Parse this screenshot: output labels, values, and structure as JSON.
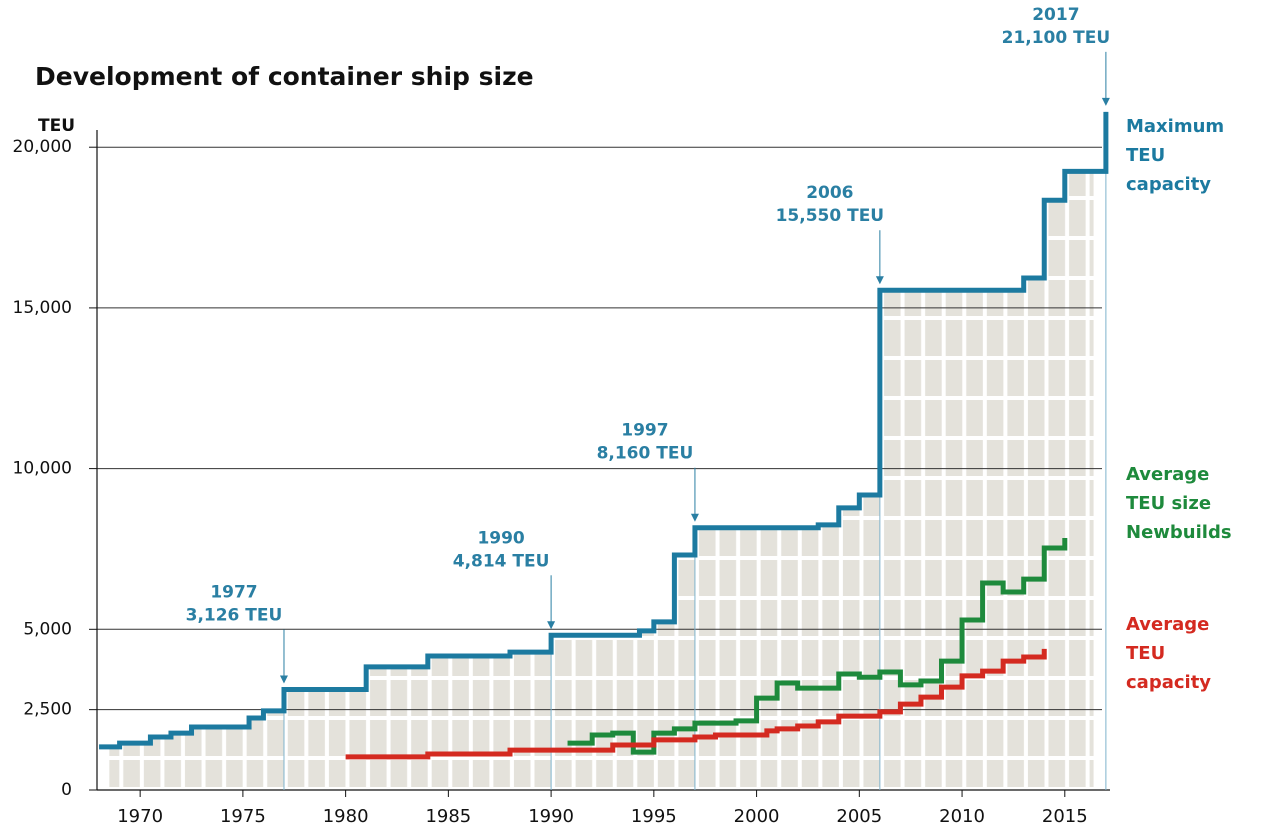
{
  "chart_data": {
    "type": "step",
    "title": "Development of container ship size",
    "y_label": "TEU",
    "xlim": [
      1967.9,
      2017.2
    ],
    "xticks": [
      1970,
      1975,
      1980,
      1985,
      1990,
      1995,
      2000,
      2005,
      2010,
      2015
    ],
    "ylim": [
      0,
      21500
    ],
    "yticks": [
      0,
      {
        "value": 2500,
        "label": "2,500"
      },
      {
        "value": 5000,
        "label": "5,000"
      },
      {
        "value": 10000,
        "label": "10,000"
      },
      {
        "value": 15000,
        "label": "15,000"
      },
      {
        "value": 20000,
        "label": "20,000"
      }
    ],
    "grid": true,
    "series": [
      {
        "name": "Maximum TEU capacity",
        "color": "#1c7aa0",
        "x": [
          1968,
          1969,
          1970.5,
          1971.5,
          1972.5,
          1975.3,
          1976,
          1977,
          1981,
          1984,
          1988,
          1990,
          1994.3,
          1995,
          1996,
          1997,
          2003,
          2004,
          2005,
          2006,
          2013,
          2014,
          2015,
          2017
        ],
        "values": [
          1340,
          1460,
          1650,
          1770,
          1960,
          2240,
          2460,
          3126,
          3830,
          4170,
          4290,
          4814,
          4950,
          5230,
          7310,
          8160,
          8250,
          8780,
          9180,
          15550,
          15930,
          18350,
          19250,
          21100
        ]
      },
      {
        "name": "Average TEU size Newbuilds",
        "color": "#1e8a3c",
        "x": [
          1990.8,
          1992,
          1993,
          1994,
          1995,
          1996,
          1997,
          1999,
          2000,
          2001,
          2002,
          2004,
          2005,
          2006,
          2007,
          2008,
          2009,
          2010,
          2011,
          2012,
          2013,
          2014,
          2015
        ],
        "values": [
          1460,
          1710,
          1770,
          1180,
          1770,
          1900,
          2080,
          2150,
          2860,
          3330,
          3170,
          3610,
          3510,
          3670,
          3270,
          3390,
          4010,
          5290,
          6440,
          6160,
          6560,
          7530,
          7840
        ]
      },
      {
        "name": "Average TEU capacity",
        "color": "#d42a20",
        "x": [
          1980,
          1984,
          1988,
          1993,
          1995,
          1997,
          1998,
          2000.5,
          2001,
          2002,
          2003,
          2004,
          2006,
          2007,
          2008,
          2009,
          2010,
          2011,
          2012,
          2013,
          2014
        ],
        "values": [
          1030,
          1120,
          1240,
          1400,
          1560,
          1650,
          1710,
          1840,
          1900,
          1990,
          2120,
          2300,
          2430,
          2670,
          2890,
          3200,
          3550,
          3700,
          4010,
          4140,
          4390
        ]
      }
    ],
    "annotations": [
      {
        "year": "1977",
        "text": "3,126 TEU",
        "x": 1977,
        "y": 3126
      },
      {
        "year": "1990",
        "text": "4,814 TEU",
        "x": 1990,
        "y": 4814
      },
      {
        "year": "1997",
        "text": "8,160 TEU",
        "x": 1997,
        "y": 8160
      },
      {
        "year": "2006",
        "text": "15,550 TEU",
        "x": 2006,
        "y": 15550
      },
      {
        "year": "2017",
        "text": "21,100 TEU",
        "x": 2017,
        "y": 21100
      }
    ]
  }
}
